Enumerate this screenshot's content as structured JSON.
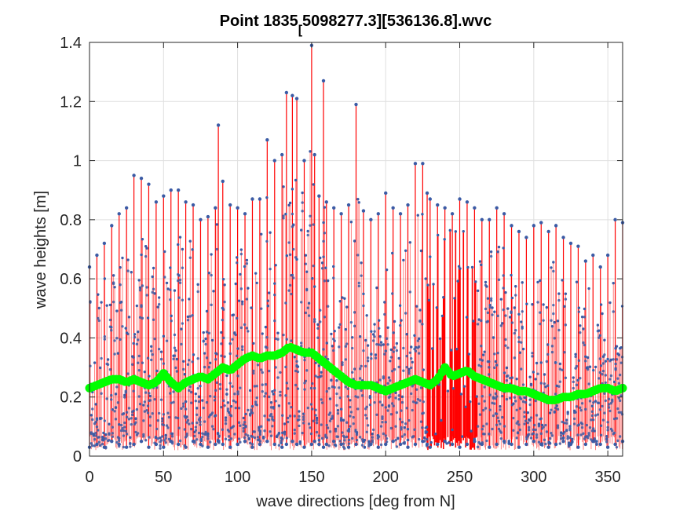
{
  "chart_data": {
    "type": "scatter",
    "title_main": "Point 1835",
    "title_sub": "[",
    "title_rest": "5098277.3][536136.8].wvc",
    "xlabel": "wave directions [deg from N]",
    "ylabel": "wave heights [m]",
    "xlim": [
      0,
      360
    ],
    "ylim": [
      0,
      1.4
    ],
    "xticks": [
      0,
      50,
      100,
      150,
      200,
      250,
      300,
      350
    ],
    "xtick_labels": [
      "0",
      "50",
      "100",
      "150",
      "200",
      "250",
      "300",
      "350"
    ],
    "yticks": [
      0,
      0.2,
      0.4,
      0.6,
      0.8,
      1.0,
      1.2,
      1.4
    ],
    "ytick_labels": [
      "0",
      "0.2",
      "0.4",
      "0.6",
      "0.8",
      "1",
      "1.2",
      "1.4"
    ],
    "grid": true,
    "colors": {
      "stem": "#ff0000",
      "marker": "#3b5ba5",
      "mean": "#00ff00",
      "axis": "#262626",
      "grid": "#dfdfdf"
    },
    "series": [
      {
        "style": "stem-markers",
        "envelope": {
          "x": [
            0,
            5,
            10,
            15,
            20,
            25,
            30,
            35,
            40,
            45,
            50,
            55,
            60,
            65,
            70,
            75,
            80,
            85,
            87,
            90,
            95,
            100,
            105,
            110,
            115,
            120,
            125,
            130,
            133,
            137,
            140,
            145,
            150,
            152,
            155,
            158,
            160,
            165,
            170,
            175,
            180,
            185,
            190,
            195,
            200,
            205,
            210,
            215,
            220,
            225,
            228,
            230,
            235,
            240,
            245,
            250,
            255,
            260,
            265,
            270,
            275,
            280,
            285,
            290,
            295,
            300,
            305,
            310,
            315,
            320,
            325,
            330,
            335,
            340,
            345,
            350,
            355,
            360
          ],
          "max": [
            0.64,
            0.68,
            0.72,
            0.78,
            0.82,
            0.84,
            0.95,
            0.94,
            0.92,
            0.86,
            0.88,
            0.9,
            0.9,
            0.86,
            0.85,
            0.8,
            0.81,
            0.84,
            1.12,
            0.93,
            0.85,
            0.84,
            0.82,
            0.87,
            0.87,
            1.07,
            1.0,
            1.02,
            1.23,
            1.22,
            1.21,
            1.0,
            1.39,
            1.02,
            0.88,
            1.27,
            0.86,
            0.84,
            0.82,
            0.85,
            1.19,
            0.83,
            0.8,
            0.82,
            0.89,
            0.84,
            0.82,
            0.85,
            0.99,
            0.99,
            0.89,
            0.87,
            0.85,
            0.84,
            0.82,
            0.87,
            0.86,
            0.84,
            0.8,
            0.8,
            0.84,
            0.82,
            0.78,
            0.76,
            0.74,
            0.78,
            0.79,
            0.76,
            0.78,
            0.74,
            0.72,
            0.71,
            0.66,
            0.68,
            0.64,
            0.68,
            0.8,
            0.79
          ],
          "min": [
            0.03,
            0.04,
            0.03,
            0.05,
            0.04,
            0.03,
            0.04,
            0.05,
            0.03,
            0.04,
            0.03,
            0.05,
            0.04,
            0.03,
            0.05,
            0.04,
            0.03,
            0.04,
            0.05,
            0.04,
            0.03,
            0.04,
            0.05,
            0.03,
            0.04,
            0.05,
            0.04,
            0.03,
            0.04,
            0.05,
            0.04,
            0.03,
            0.04,
            0.05,
            0.04,
            0.03,
            0.04,
            0.05,
            0.04,
            0.03,
            0.04,
            0.05,
            0.04,
            0.03,
            0.04,
            0.05,
            0.04,
            0.03,
            0.04,
            0.05,
            0.04,
            0.03,
            0.04,
            0.05,
            0.04,
            0.03,
            0.04,
            0.05,
            0.04,
            0.03,
            0.04,
            0.05,
            0.04,
            0.03,
            0.04,
            0.05,
            0.04,
            0.03,
            0.04,
            0.05,
            0.04,
            0.03,
            0.04,
            0.05,
            0.04,
            0.03,
            0.04,
            0.05
          ]
        },
        "dense_band_x": [
          228,
          262
        ]
      },
      {
        "style": "mean-line-markers",
        "x": [
          0,
          5,
          10,
          15,
          20,
          25,
          30,
          35,
          40,
          45,
          50,
          55,
          60,
          65,
          70,
          75,
          80,
          85,
          90,
          95,
          100,
          105,
          110,
          115,
          120,
          125,
          130,
          135,
          140,
          145,
          150,
          155,
          160,
          165,
          170,
          175,
          180,
          185,
          190,
          195,
          200,
          205,
          210,
          215,
          220,
          225,
          230,
          235,
          240,
          245,
          250,
          255,
          260,
          265,
          270,
          275,
          280,
          285,
          290,
          295,
          300,
          305,
          310,
          315,
          320,
          325,
          330,
          335,
          340,
          345,
          350,
          355,
          360
        ],
        "y": [
          0.23,
          0.24,
          0.25,
          0.26,
          0.26,
          0.25,
          0.26,
          0.25,
          0.24,
          0.25,
          0.28,
          0.25,
          0.23,
          0.25,
          0.26,
          0.27,
          0.26,
          0.28,
          0.3,
          0.29,
          0.31,
          0.33,
          0.34,
          0.33,
          0.34,
          0.34,
          0.35,
          0.37,
          0.36,
          0.35,
          0.35,
          0.33,
          0.31,
          0.29,
          0.27,
          0.25,
          0.24,
          0.24,
          0.24,
          0.23,
          0.22,
          0.23,
          0.24,
          0.25,
          0.26,
          0.25,
          0.24,
          0.26,
          0.3,
          0.27,
          0.28,
          0.29,
          0.27,
          0.26,
          0.25,
          0.24,
          0.23,
          0.23,
          0.22,
          0.22,
          0.21,
          0.2,
          0.19,
          0.19,
          0.2,
          0.2,
          0.21,
          0.21,
          0.22,
          0.23,
          0.23,
          0.22,
          0.23
        ]
      }
    ]
  }
}
